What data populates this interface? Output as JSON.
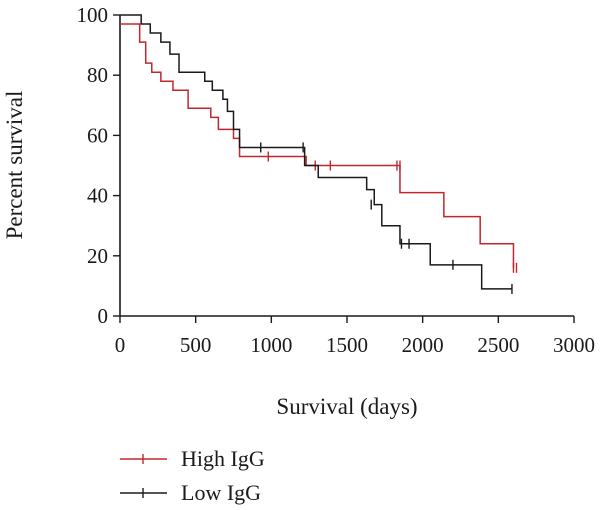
{
  "chart_data": {
    "type": "line",
    "step": true,
    "title": "",
    "xlabel": "Survival (days)",
    "ylabel": "Percent survival",
    "xlim": [
      0,
      3000
    ],
    "ylim": [
      0,
      100
    ],
    "xticks": [
      0,
      500,
      1000,
      1500,
      2000,
      2500,
      3000
    ],
    "yticks": [
      0,
      20,
      40,
      60,
      80,
      100
    ],
    "grid": false,
    "legend_position": "bottom-left",
    "series": [
      {
        "name": "High IgG",
        "color": "#c0282d",
        "x": [
          0,
          130,
          170,
          210,
          270,
          350,
          450,
          600,
          650,
          750,
          790,
          1230,
          1850,
          2140,
          2380,
          2600
        ],
        "y": [
          97,
          91,
          84,
          81,
          78,
          75,
          69,
          66,
          62,
          59,
          53,
          50,
          41,
          33,
          24,
          16
        ],
        "censored": [
          [
            980,
            53
          ],
          [
            1290,
            50
          ],
          [
            1390,
            50
          ],
          [
            1830,
            50
          ],
          [
            1850,
            50
          ],
          [
            2600,
            16
          ],
          [
            2620,
            16
          ]
        ]
      },
      {
        "name": "Low IgG",
        "color": "#1a1a1a",
        "x": [
          0,
          140,
          200,
          270,
          330,
          390,
          560,
          610,
          680,
          710,
          750,
          790,
          1220,
          1310,
          1630,
          1680,
          1730,
          1850,
          2050,
          2390,
          2590
        ],
        "y": [
          100,
          97,
          94,
          91,
          87,
          81,
          78,
          75,
          72,
          68,
          62,
          56,
          50,
          46,
          42,
          37,
          30,
          24,
          17,
          9,
          9
        ],
        "censored": [
          [
            930,
            56
          ],
          [
            1210,
            56
          ],
          [
            1660,
            37
          ],
          [
            1860,
            24
          ],
          [
            1910,
            24
          ],
          [
            2200,
            17
          ],
          [
            2590,
            9
          ]
        ]
      }
    ]
  }
}
